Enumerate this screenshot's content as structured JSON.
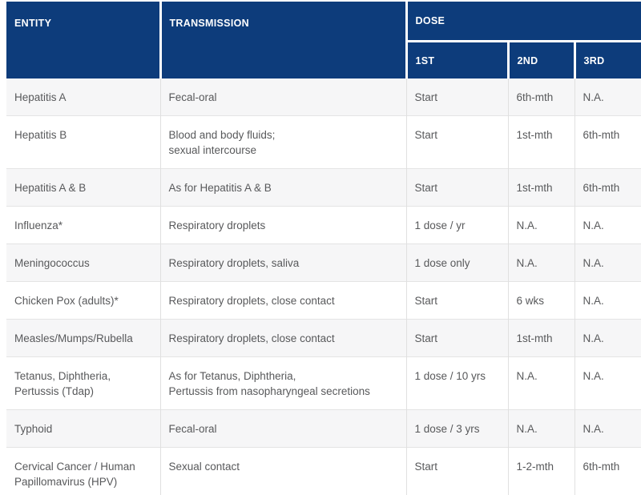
{
  "colors": {
    "header_bg": "#0d3c7b",
    "header_text": "#ffffff",
    "row_alt_bg": "#f6f6f7",
    "body_text": "#58595b",
    "divider": "#e0e0e0"
  },
  "table": {
    "headers": {
      "entity": "ENTITY",
      "transmission": "TRANSMISSION",
      "dose": "DOSE",
      "dose_sub_1": "1ST",
      "dose_sub_2": "2ND",
      "dose_sub_3": "3RD"
    },
    "rows": [
      {
        "entity": "Hepatitis A",
        "transmission": "Fecal-oral",
        "dose1": "Start",
        "dose2": "6th-mth",
        "dose3": "N.A."
      },
      {
        "entity": "Hepatitis B",
        "transmission": "Blood and body fluids;\nsexual intercourse",
        "dose1": "Start",
        "dose2": "1st-mth",
        "dose3": "6th-mth"
      },
      {
        "entity": "Hepatitis A & B",
        "transmission": "As for Hepatitis A & B",
        "dose1": "Start",
        "dose2": "1st-mth",
        "dose3": "6th-mth"
      },
      {
        "entity": "Influenza*",
        "transmission": "Respiratory droplets",
        "dose1": "1 dose / yr",
        "dose2": "N.A.",
        "dose3": "N.A."
      },
      {
        "entity": "Meningococcus",
        "transmission": "Respiratory droplets, saliva",
        "dose1": "1 dose only",
        "dose2": "N.A.",
        "dose3": "N.A."
      },
      {
        "entity": "Chicken Pox (adults)*",
        "transmission": "Respiratory droplets, close contact",
        "dose1": "Start",
        "dose2": "6 wks",
        "dose3": "N.A."
      },
      {
        "entity": "Measles/Mumps/Rubella",
        "transmission": "Respiratory droplets, close contact",
        "dose1": "Start",
        "dose2": "1st-mth",
        "dose3": "N.A."
      },
      {
        "entity": "Tetanus, Diphtheria,\nPertussis (Tdap)",
        "transmission": "As for Tetanus, Diphtheria,\nPertussis from nasopharyngeal secretions",
        "dose1": "1 dose / 10 yrs",
        "dose2": "N.A.",
        "dose3": "N.A."
      },
      {
        "entity": "Typhoid",
        "transmission": "Fecal-oral",
        "dose1": "1 dose / 3 yrs",
        "dose2": "N.A.",
        "dose3": "N.A."
      },
      {
        "entity": "Cervical Cancer / Human\nPapillomavirus (HPV)",
        "transmission": "Sexual contact",
        "dose1": "Start",
        "dose2": "1-2-mth",
        "dose3": "6th-mth"
      }
    ]
  }
}
